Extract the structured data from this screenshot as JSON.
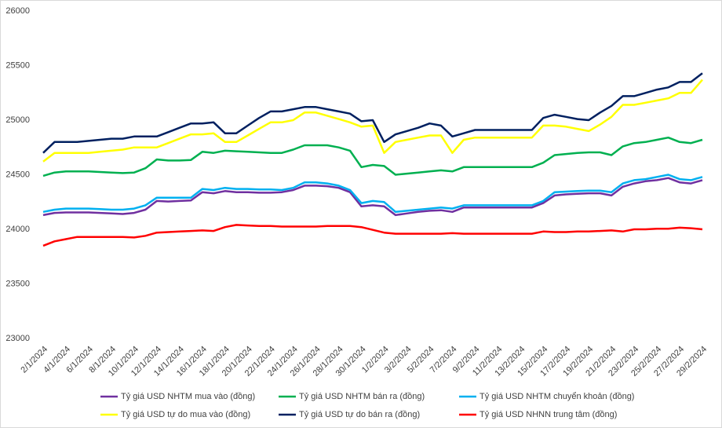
{
  "chart_data": {
    "type": "line",
    "categories": [
      "2/1/2024",
      null,
      "4/1/2024",
      null,
      "6/1/2024",
      null,
      "8/1/2024",
      null,
      "10/1/2024",
      null,
      "12/1/2024",
      null,
      "14/1/2024",
      null,
      "16/1/2024",
      null,
      "18/1/2024",
      null,
      "20/1/2024",
      null,
      "22/1/2024",
      null,
      "24/1/2024",
      null,
      "26/1/2024",
      null,
      "28/1/2024",
      null,
      "30/1/2024",
      null,
      "1/2/2024",
      null,
      "3/2/2024",
      null,
      "5/2/2024",
      null,
      "7/2/2024",
      null,
      "9/2/2024",
      null,
      "11/2/2024",
      null,
      "13/2/2024",
      null,
      "15/2/2024",
      null,
      "17/2/2024",
      null,
      "19/2/2024",
      null,
      "21/2/2024",
      null,
      "23/2/2024",
      null,
      "25/2/2024",
      null,
      "27/2/2024",
      null,
      "29/2/2024"
    ],
    "series": [
      {
        "name": "Tỷ giá USD NHTM mua vào (đồng)",
        "color": "#7030a0",
        "values": [
          24130,
          24150,
          24155,
          24155,
          24155,
          24150,
          24145,
          24140,
          24150,
          24180,
          24260,
          24255,
          24260,
          24265,
          24340,
          24330,
          24350,
          24340,
          24340,
          24335,
          24335,
          24340,
          24360,
          24400,
          24400,
          24395,
          24380,
          24340,
          24210,
          24220,
          24210,
          24130,
          24145,
          24160,
          24170,
          24175,
          24160,
          24200,
          24200,
          24200,
          24200,
          24200,
          24200,
          24200,
          24240,
          24310,
          24320,
          24325,
          24330,
          24330,
          24310,
          24390,
          24420,
          24440,
          24450,
          24470,
          24430,
          24420,
          24450
        ]
      },
      {
        "name": "Tỷ giá USD NHTM bán ra (đồng)",
        "color": "#00b050",
        "values": [
          24490,
          24520,
          24530,
          24530,
          24530,
          24525,
          24520,
          24515,
          24520,
          24560,
          24640,
          24630,
          24630,
          24635,
          24710,
          24700,
          24720,
          24715,
          24710,
          24705,
          24700,
          24700,
          24730,
          24770,
          24770,
          24770,
          24750,
          24720,
          24570,
          24590,
          24580,
          24500,
          24510,
          24520,
          24530,
          24540,
          24530,
          24570,
          24570,
          24570,
          24570,
          24570,
          24570,
          24570,
          24610,
          24680,
          24690,
          24700,
          24705,
          24705,
          24680,
          24760,
          24790,
          24800,
          24820,
          24840,
          24800,
          24790,
          24820
        ]
      },
      {
        "name": "Tỷ giá USD NHTM chuyển khoản (đồng)",
        "color": "#00b0f0",
        "values": [
          24160,
          24180,
          24190,
          24190,
          24190,
          24185,
          24180,
          24180,
          24190,
          24220,
          24290,
          24290,
          24290,
          24290,
          24370,
          24360,
          24380,
          24370,
          24370,
          24365,
          24365,
          24360,
          24380,
          24430,
          24430,
          24420,
          24400,
          24360,
          24240,
          24260,
          24250,
          24160,
          24170,
          24180,
          24190,
          24200,
          24190,
          24220,
          24220,
          24220,
          24220,
          24220,
          24220,
          24220,
          24260,
          24340,
          24345,
          24350,
          24355,
          24355,
          24340,
          24420,
          24450,
          24460,
          24480,
          24500,
          24460,
          24450,
          24480
        ]
      },
      {
        "name": "Tỷ giá USD tự do mua vào (đồng)",
        "color": "#ffff00",
        "values": [
          24620,
          24700,
          24700,
          24700,
          24700,
          24710,
          24720,
          24730,
          24750,
          24750,
          24750,
          24790,
          24830,
          24870,
          24870,
          24880,
          24800,
          24800,
          24860,
          24920,
          24980,
          24980,
          25000,
          25070,
          25070,
          25040,
          25010,
          24980,
          24940,
          24950,
          24700,
          24800,
          24820,
          24840,
          24860,
          24860,
          24700,
          24820,
          24840,
          24840,
          24840,
          24840,
          24840,
          24840,
          24950,
          24950,
          24940,
          24920,
          24900,
          24960,
          25030,
          25140,
          25140,
          25160,
          25180,
          25200,
          25250,
          25250,
          25370
        ]
      },
      {
        "name": "Tỷ giá USD tự do bán ra (đồng)",
        "color": "#002060",
        "values": [
          24700,
          24800,
          24800,
          24800,
          24810,
          24820,
          24830,
          24830,
          24850,
          24850,
          24850,
          24890,
          24930,
          24970,
          24970,
          24980,
          24880,
          24880,
          24950,
          25020,
          25080,
          25080,
          25100,
          25120,
          25120,
          25100,
          25080,
          25060,
          24990,
          25000,
          24800,
          24870,
          24900,
          24930,
          24970,
          24950,
          24850,
          24880,
          24910,
          24910,
          24910,
          24910,
          24910,
          24910,
          25020,
          25050,
          25030,
          25010,
          25000,
          25070,
          25130,
          25220,
          25220,
          25250,
          25280,
          25300,
          25350,
          25350,
          25430
        ]
      },
      {
        "name": "Tỷ giá USD NHNN trung tâm (đồng)",
        "color": "#ff0000",
        "values": [
          23850,
          23890,
          23910,
          23930,
          23930,
          23930,
          23930,
          23930,
          23925,
          23940,
          23970,
          23975,
          23980,
          23985,
          23990,
          23985,
          24020,
          24040,
          24035,
          24030,
          24030,
          24025,
          24025,
          24025,
          24025,
          24030,
          24030,
          24030,
          24020,
          23995,
          23970,
          23960,
          23960,
          23960,
          23960,
          23960,
          23965,
          23960,
          23960,
          23960,
          23960,
          23960,
          23960,
          23960,
          23980,
          23975,
          23975,
          23980,
          23980,
          23985,
          23990,
          23980,
          24000,
          24000,
          24005,
          24005,
          24015,
          24010,
          24000
        ]
      }
    ],
    "ylim": [
      23000,
      26000
    ],
    "yticks": [
      23000,
      23500,
      24000,
      24500,
      25000,
      25500,
      26000
    ],
    "grid": false
  }
}
